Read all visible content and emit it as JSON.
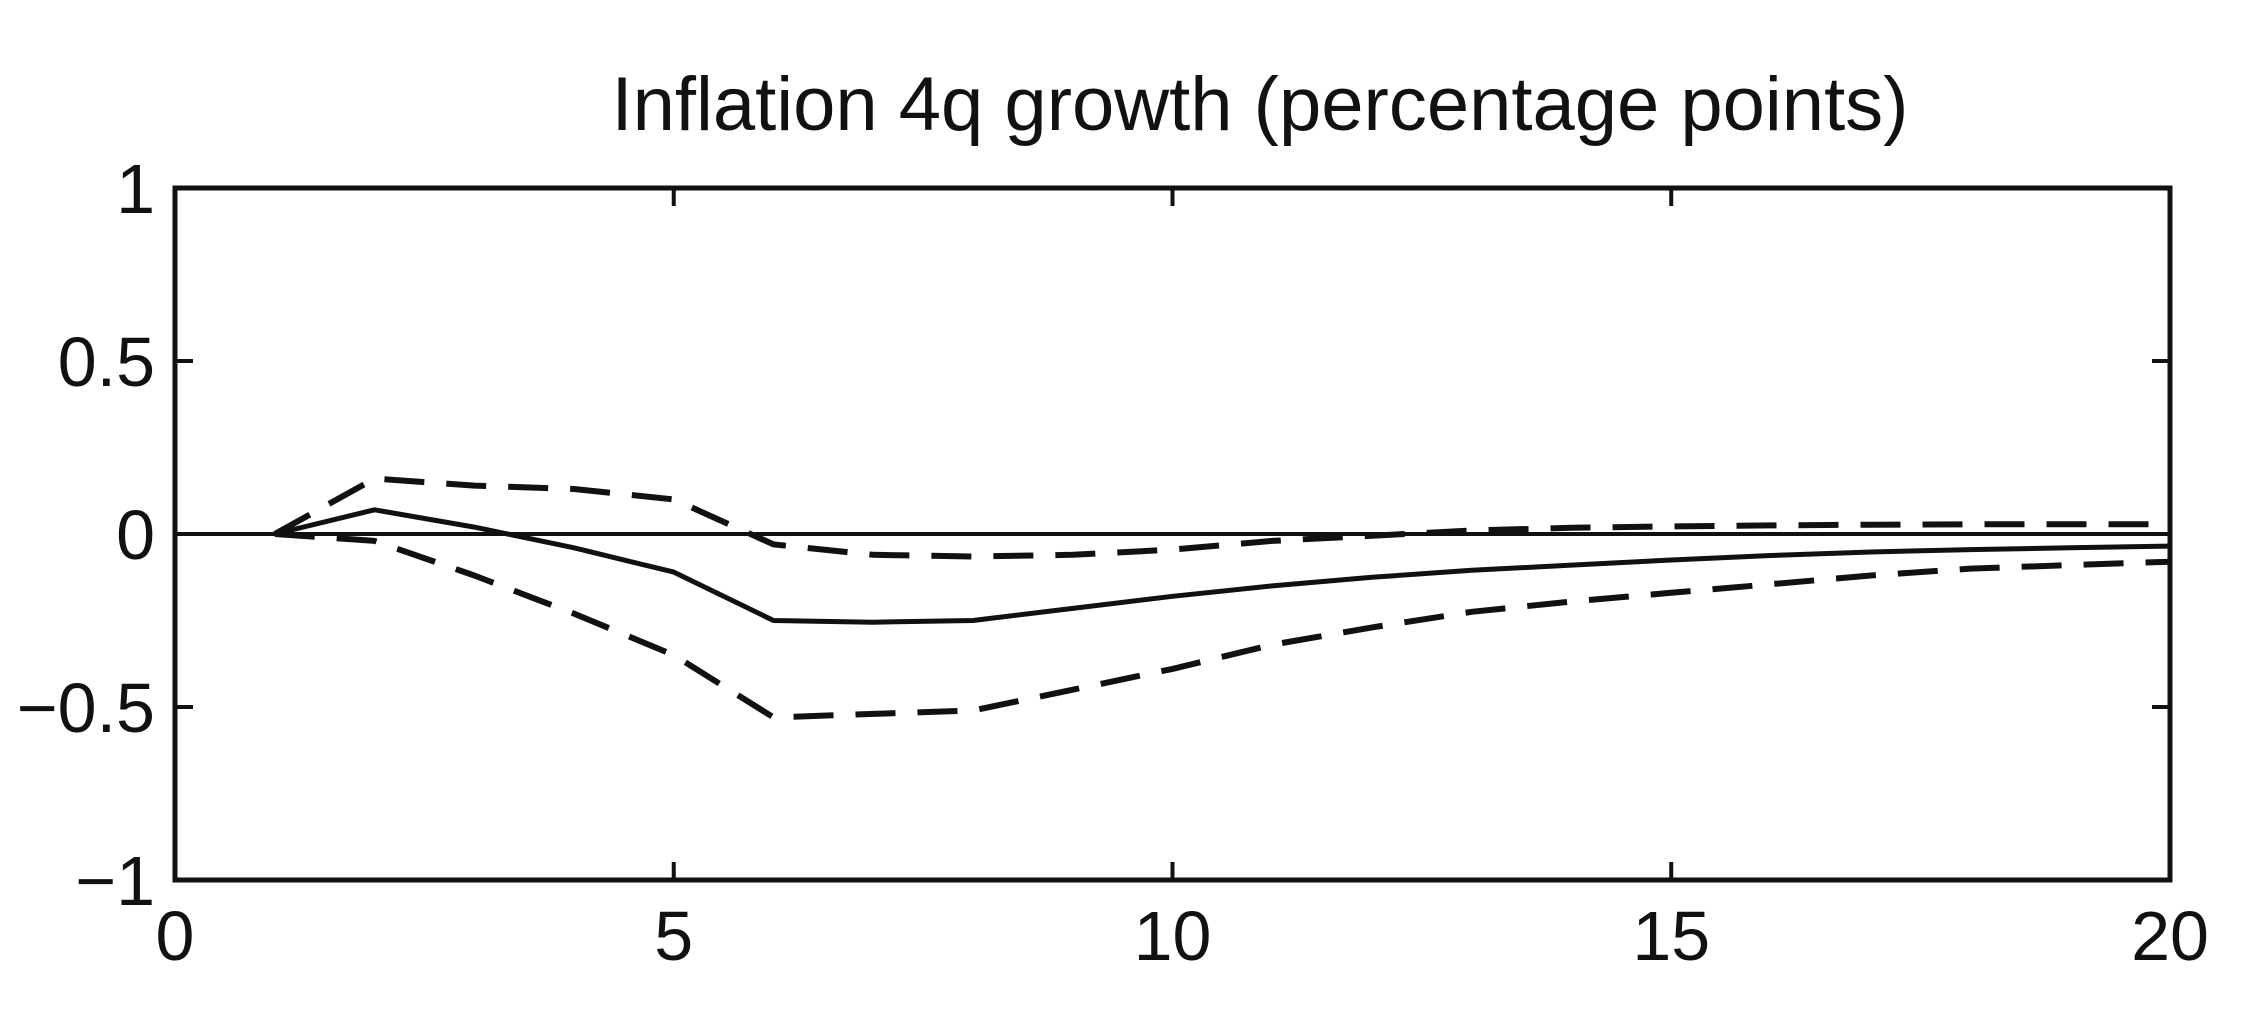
{
  "chart_data": {
    "type": "line",
    "title": "Inflation 4q growth (percentage points)",
    "xlabel": "",
    "ylabel": "",
    "xlim": [
      0,
      20
    ],
    "ylim": [
      -1,
      1
    ],
    "xticks": [
      0,
      5,
      10,
      15,
      20
    ],
    "xtick_labels": [
      "0",
      "5",
      "10",
      "15",
      "20"
    ],
    "yticks": [
      1,
      0.5,
      0,
      -0.5,
      -1
    ],
    "ytick_labels": [
      "1",
      "0.5",
      "0",
      "−0.5",
      "−1"
    ],
    "grid": false,
    "legend": "none",
    "reference_line": {
      "y": 0,
      "style": "solid"
    },
    "series": [
      {
        "style": "solid",
        "x": [
          1,
          2,
          3,
          4,
          5,
          6,
          7,
          8,
          9,
          10,
          11,
          12,
          13,
          14,
          15,
          16,
          17,
          18,
          19,
          20
        ],
        "y": [
          0,
          0.07,
          0.02,
          -0.04,
          -0.11,
          -0.25,
          -0.255,
          -0.25,
          -0.215,
          -0.18,
          -0.15,
          -0.125,
          -0.105,
          -0.09,
          -0.075,
          -0.062,
          -0.052,
          -0.045,
          -0.04,
          -0.035
        ]
      },
      {
        "style": "dashed",
        "x": [
          1,
          2,
          3,
          4,
          5,
          6,
          7,
          8,
          9,
          10,
          11,
          12,
          13,
          14,
          15,
          16,
          17,
          18,
          19,
          20
        ],
        "y": [
          0,
          0.16,
          0.14,
          0.13,
          0.1,
          -0.03,
          -0.06,
          -0.065,
          -0.06,
          -0.045,
          -0.02,
          -0.005,
          0.01,
          0.018,
          0.022,
          0.025,
          0.027,
          0.028,
          0.028,
          0.028
        ]
      },
      {
        "style": "dashed",
        "x": [
          1,
          2,
          3,
          4,
          5,
          6,
          7,
          8,
          9,
          10,
          11,
          12,
          13,
          14,
          15,
          16,
          17,
          18,
          19,
          20
        ],
        "y": [
          0,
          -0.02,
          -0.12,
          -0.23,
          -0.35,
          -0.53,
          -0.52,
          -0.51,
          -0.45,
          -0.39,
          -0.32,
          -0.27,
          -0.225,
          -0.195,
          -0.17,
          -0.145,
          -0.12,
          -0.1,
          -0.09,
          -0.08
        ]
      }
    ]
  }
}
